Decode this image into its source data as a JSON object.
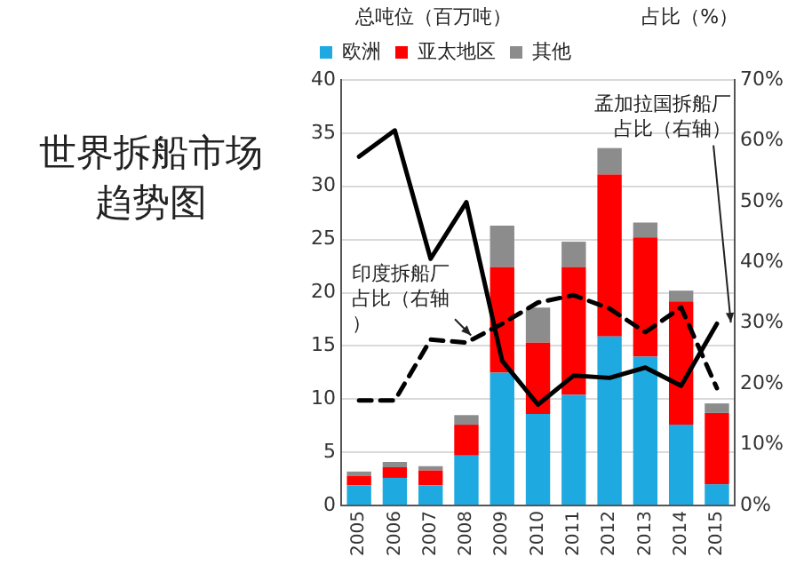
{
  "chart_data": {
    "type": "bar",
    "title": "世界拆船市场趋势图",
    "ylabel": "总吨位（百万吨）",
    "y2label": "占比（%）",
    "categories": [
      "2005",
      "2006",
      "2007",
      "2008",
      "2009",
      "2010",
      "2011",
      "2012",
      "2013",
      "2014",
      "2015"
    ],
    "series": [
      {
        "name": "欧洲",
        "color": "#1ea9e1",
        "values": [
          1.9,
          2.6,
          1.9,
          4.7,
          12.5,
          8.6,
          10.4,
          15.9,
          14.0,
          7.6,
          2.0
        ]
      },
      {
        "name": "亚太地区",
        "color": "#ff0000",
        "values": [
          0.9,
          1.0,
          1.4,
          2.9,
          9.9,
          6.7,
          12.0,
          15.2,
          11.2,
          11.6,
          6.7
        ]
      },
      {
        "name": "其他",
        "color": "#8c8c8c",
        "values": [
          0.4,
          0.5,
          0.4,
          0.9,
          3.9,
          3.3,
          2.4,
          2.5,
          1.4,
          1.0,
          0.9
        ]
      },
      {
        "type": "line",
        "axis": "y2",
        "color": "#000000",
        "line_style": "solid",
        "values": [
          57.4,
          61.7,
          40.6,
          49.9,
          23.8,
          16.6,
          21.4,
          21.0,
          22.7,
          19.7,
          29.9
        ]
      },
      {
        "type": "line",
        "axis": "y2",
        "color": "#000000",
        "line_style": "dashed",
        "values": [
          17.3,
          17.3,
          27.3,
          26.8,
          29.9,
          33.4,
          34.6,
          32.4,
          28.5,
          32.6,
          19.3
        ]
      }
    ],
    "stacked": true,
    "ylim": [
      0,
      40
    ],
    "yticks": [
      0,
      5,
      10,
      15,
      20,
      25,
      30,
      35,
      40
    ],
    "y2lim": [
      0,
      70
    ],
    "y2ticks": [
      {
        "value": 0,
        "label": "0%"
      },
      {
        "value": 10,
        "label": "10%"
      },
      {
        "value": 20,
        "label": "20%"
      },
      {
        "value": 30,
        "label": "30%"
      },
      {
        "value": 40,
        "label": "40%"
      },
      {
        "value": 50,
        "label": "50%"
      },
      {
        "value": 60,
        "label": "60%"
      },
      {
        "value": 70,
        "label": "70%"
      }
    ],
    "grid": "y",
    "legend": "top left",
    "marker": "none",
    "annotations": [
      "印度拆船厂占比（右轴）",
      "孟加拉国拆船厂占比（右轴）"
    ]
  }
}
